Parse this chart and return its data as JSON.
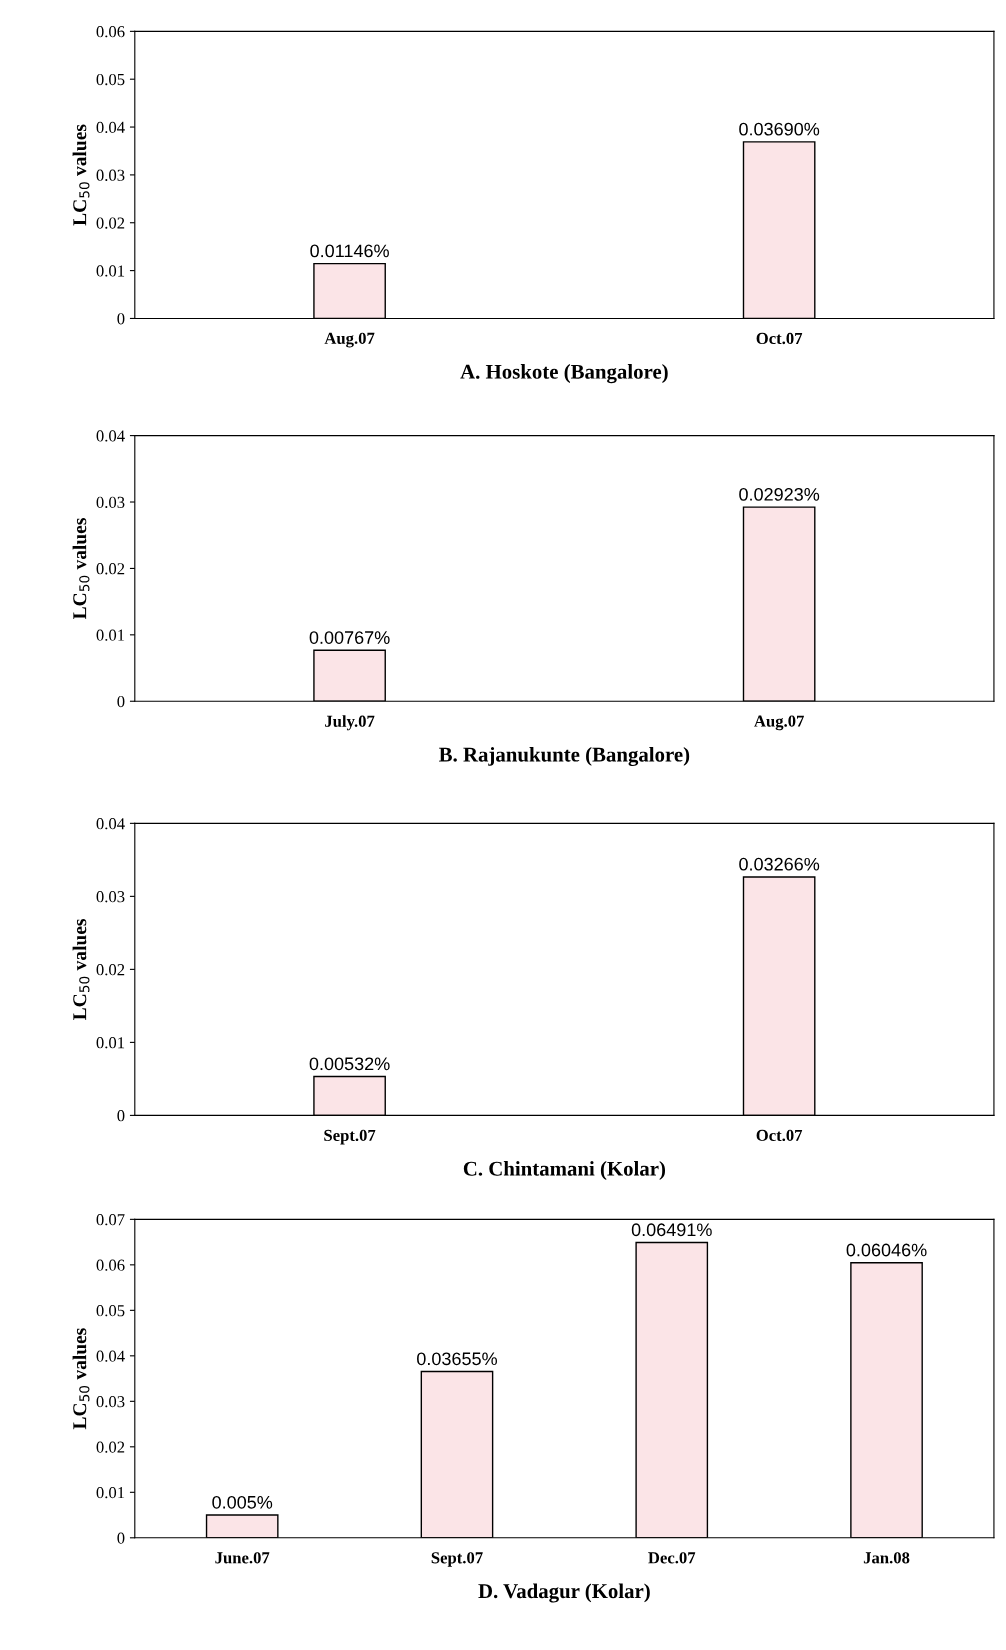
{
  "chart_data": [
    {
      "type": "bar",
      "xlabel": "A. Hoskote (Bangalore)",
      "ylabel": "LC$_{50}$ values",
      "categories": [
        "Aug.07",
        "Oct.07"
      ],
      "values": [
        0.01146,
        0.0369
      ],
      "value_labels": [
        "0.01146%",
        "0.03690%"
      ],
      "color": "#fbe4e7",
      "ylim": [
        0,
        0.06
      ],
      "yticks": [
        0,
        0.01,
        0.02,
        0.03,
        0.04,
        0.05,
        0.06
      ],
      "grid": false,
      "legend": false
    },
    {
      "type": "bar",
      "xlabel": "B. Rajanukunte (Bangalore)",
      "ylabel": "LC$_{50}$ values",
      "categories": [
        "July.07",
        "Aug.07"
      ],
      "values": [
        0.00767,
        0.02923
      ],
      "value_labels": [
        "0.00767%",
        "0.02923%"
      ],
      "color": "#fbe4e7",
      "ylim": [
        0,
        0.04
      ],
      "yticks": [
        0,
        0.01,
        0.02,
        0.03,
        0.04
      ],
      "grid": false,
      "legend": false
    },
    {
      "type": "bar",
      "xlabel": "C. Chintamani (Kolar)",
      "ylabel": "LC$_{50}$ values",
      "categories": [
        "Sept.07",
        "Oct.07"
      ],
      "values": [
        0.00532,
        0.03266
      ],
      "value_labels": [
        "0.00532%",
        "0.03266%"
      ],
      "color": "#fbe4e7",
      "ylim": [
        0,
        0.04
      ],
      "yticks": [
        0,
        0.01,
        0.02,
        0.03,
        0.04
      ],
      "grid": false,
      "legend": false
    },
    {
      "type": "bar",
      "xlabel": "D. Vadagur (Kolar)",
      "ylabel": "LC$_{50}$ values",
      "categories": [
        "June.07",
        "Sept.07",
        "Dec.07",
        "Jan.08"
      ],
      "values": [
        0.005,
        0.03655,
        0.06491,
        0.06046
      ],
      "value_labels": [
        "0.005%",
        "0.03655%",
        "0.06491%",
        "0.06046%"
      ],
      "color": "#fbe4e7",
      "ylim": [
        0,
        0.07
      ],
      "yticks": [
        0,
        0.01,
        0.02,
        0.03,
        0.04,
        0.05,
        0.06,
        0.07
      ],
      "grid": false,
      "legend": false
    }
  ]
}
